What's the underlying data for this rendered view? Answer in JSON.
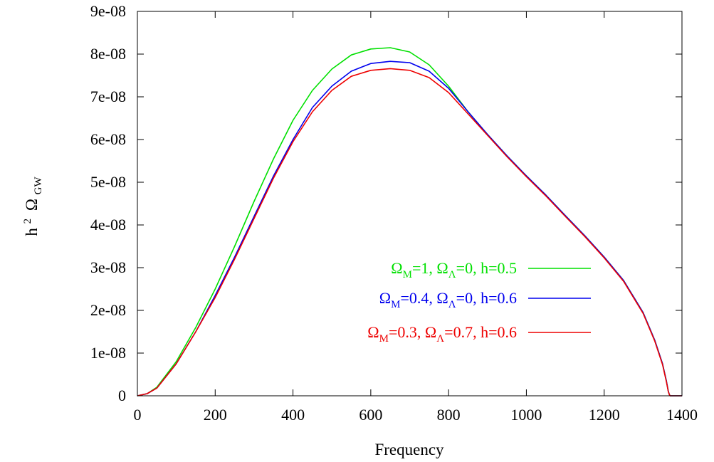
{
  "chart_data": {
    "type": "line",
    "title": "",
    "xlabel": "Frequency",
    "ylabel": {
      "main": "h",
      "sup": "2",
      "omega": "Ω",
      "sub": "GW"
    },
    "xlim": [
      0,
      1400
    ],
    "ylim": [
      0,
      9e-08
    ],
    "x_ticks": [
      "0",
      "200",
      "400",
      "600",
      "800",
      "1000",
      "1200",
      "1400"
    ],
    "y_ticks": [
      "0",
      "1e-08",
      "2e-08",
      "3e-08",
      "4e-08",
      "5e-08",
      "6e-08",
      "7e-08",
      "8e-08",
      "9e-08"
    ],
    "grid": false,
    "legend_position": "right",
    "series": [
      {
        "color": "#00e000",
        "legend": {
          "o1": "Ω",
          "s1": "M",
          "t1": "=1, ",
          "o2": "Ω",
          "s2": "Λ",
          "t2": "=0, h=0.5"
        },
        "x": [
          0,
          25,
          50,
          100,
          150,
          200,
          250,
          300,
          350,
          400,
          450,
          500,
          550,
          600,
          650,
          700,
          750,
          800,
          850,
          900,
          950,
          1000,
          1050,
          1100,
          1150,
          1200,
          1250,
          1300,
          1330,
          1350,
          1360,
          1365,
          1368,
          1370,
          1400
        ],
        "y": [
          0,
          5e-10,
          2e-09,
          8e-09,
          1.6e-08,
          2.5e-08,
          3.5e-08,
          4.55e-08,
          5.55e-08,
          6.45e-08,
          7.15e-08,
          7.65e-08,
          7.98e-08,
          8.12e-08,
          8.15e-08,
          8.05e-08,
          7.75e-08,
          7.25e-08,
          6.65e-08,
          6.12e-08,
          5.62e-08,
          5.15e-08,
          4.7e-08,
          4.22e-08,
          3.75e-08,
          3.25e-08,
          2.7e-08,
          1.95e-08,
          1.3e-08,
          7.5e-09,
          3.5e-09,
          1e-09,
          2e-10,
          0,
          0
        ]
      },
      {
        "color": "#0000ee",
        "legend": {
          "o1": "Ω",
          "s1": "M",
          "t1": "=0.4, ",
          "o2": "Ω",
          "s2": "Λ",
          "t2": "=0, h=0.6"
        },
        "x": [
          0,
          25,
          50,
          100,
          150,
          200,
          250,
          300,
          350,
          400,
          450,
          500,
          550,
          600,
          650,
          700,
          750,
          800,
          850,
          900,
          950,
          1000,
          1050,
          1100,
          1150,
          1200,
          1250,
          1300,
          1330,
          1350,
          1360,
          1365,
          1368,
          1370,
          1400
        ],
        "y": [
          0,
          5e-10,
          1.8e-09,
          7.5e-09,
          1.5e-08,
          2.35e-08,
          3.25e-08,
          4.2e-08,
          5.15e-08,
          6e-08,
          6.75e-08,
          7.25e-08,
          7.6e-08,
          7.78e-08,
          7.83e-08,
          7.8e-08,
          7.6e-08,
          7.2e-08,
          6.65e-08,
          6.12e-08,
          5.62e-08,
          5.15e-08,
          4.7e-08,
          4.22e-08,
          3.75e-08,
          3.25e-08,
          2.7e-08,
          1.95e-08,
          1.3e-08,
          7.5e-09,
          3.5e-09,
          1e-09,
          2e-10,
          0,
          0
        ]
      },
      {
        "color": "#ee0000",
        "legend": {
          "o1": "Ω",
          "s1": "M",
          "t1": "=0.3, ",
          "o2": "Ω",
          "s2": "Λ",
          "t2": "=0.7, h=0.6"
        },
        "x": [
          0,
          25,
          50,
          100,
          150,
          200,
          250,
          300,
          350,
          400,
          450,
          500,
          550,
          600,
          650,
          700,
          750,
          800,
          850,
          900,
          950,
          1000,
          1050,
          1100,
          1150,
          1200,
          1250,
          1300,
          1330,
          1350,
          1360,
          1365,
          1368,
          1370,
          1400
        ],
        "y": [
          0,
          5e-10,
          1.8e-09,
          7.5e-09,
          1.5e-08,
          2.3e-08,
          3.2e-08,
          4.15e-08,
          5.1e-08,
          5.95e-08,
          6.65e-08,
          7.15e-08,
          7.48e-08,
          7.62e-08,
          7.66e-08,
          7.62e-08,
          7.45e-08,
          7.1e-08,
          6.6e-08,
          6.1e-08,
          5.6e-08,
          5.13e-08,
          4.68e-08,
          4.2e-08,
          3.73e-08,
          3.23e-08,
          2.68e-08,
          1.93e-08,
          1.28e-08,
          7.3e-09,
          3.3e-09,
          9e-10,
          2e-10,
          0,
          0
        ]
      }
    ]
  }
}
